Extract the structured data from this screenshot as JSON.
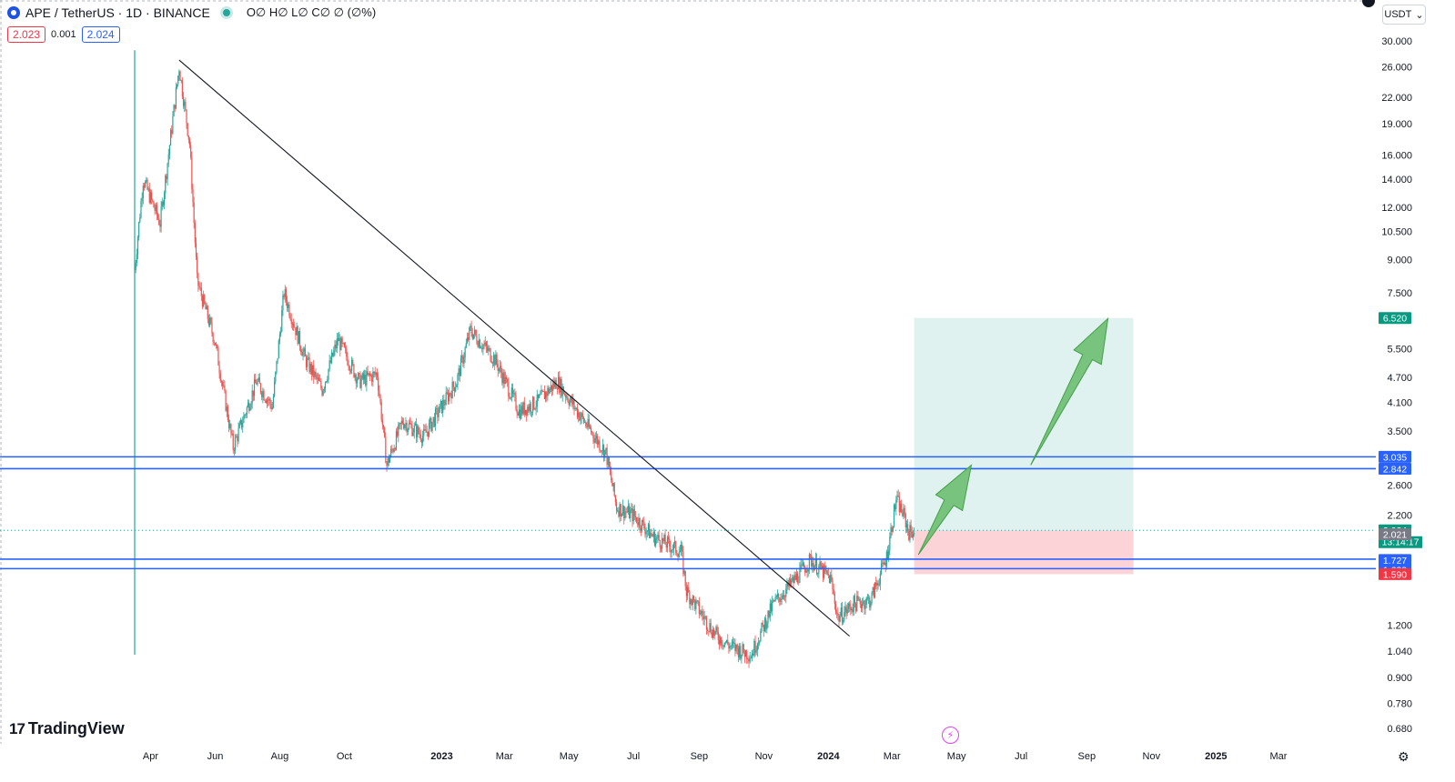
{
  "header": {
    "symbol_title": "APE / TetherUS · 1D · BINANCE",
    "ohlc": "O∅ H∅ L∅ C∅ ∅ (∅%)",
    "sell_price": "2.023",
    "spread": "0.001",
    "buy_price": "2.024",
    "currency": "USDT",
    "currency_caret": "⌄",
    "logo_mark": "17",
    "logo_text": "TradingView",
    "settings_icon": "gear-icon",
    "bolt_glyph": "⚡"
  },
  "colors": {
    "up": "#26a69a",
    "down": "#ef5350",
    "blue_line": "#2962ff",
    "target_zone": "#26a69a",
    "stop_zone": "#f23645",
    "arrow": "#66bb6a"
  },
  "chart_data": {
    "type": "candlestick",
    "scale": "log",
    "ylim": [
      0.62,
      32.0
    ],
    "y_ticks": [
      "30.000",
      "26.000",
      "22.000",
      "19.000",
      "16.000",
      "14.000",
      "12.000",
      "10.500",
      "9.000",
      "7.500",
      "5.500",
      "4.700",
      "4.100",
      "3.500",
      "2.600",
      "2.200",
      "1.200",
      "1.040",
      "0.900",
      "0.780",
      "0.680"
    ],
    "x_ticks": [
      "Apr",
      "Jun",
      "Aug",
      "Oct",
      "2023",
      "Mar",
      "May",
      "Jul",
      "Sep",
      "Nov",
      "2024",
      "Mar",
      "May",
      "Jul",
      "Sep",
      "Nov",
      "2025",
      "Mar"
    ],
    "x_tick_dates": [
      "2022-04-01",
      "2022-06-01",
      "2022-08-01",
      "2022-10-01",
      "2023-01-01",
      "2023-03-01",
      "2023-05-01",
      "2023-07-01",
      "2023-09-01",
      "2023-11-01",
      "2024-01-01",
      "2024-03-01",
      "2024-05-01",
      "2024-07-01",
      "2024-09-01",
      "2024-11-01",
      "2025-01-01",
      "2025-03-01"
    ],
    "date_range": [
      "2022-03-17",
      "2025-05-01"
    ],
    "key_points": [
      {
        "date": "2022-03-17",
        "price": 8.5
      },
      {
        "date": "2022-03-25",
        "price": 14.0
      },
      {
        "date": "2022-04-10",
        "price": 11.0
      },
      {
        "date": "2022-04-28",
        "price": 26.0
      },
      {
        "date": "2022-05-08",
        "price": 17.0
      },
      {
        "date": "2022-05-15",
        "price": 8.0
      },
      {
        "date": "2022-06-01",
        "price": 5.7
      },
      {
        "date": "2022-06-18",
        "price": 3.2
      },
      {
        "date": "2022-07-10",
        "price": 4.6
      },
      {
        "date": "2022-07-25",
        "price": 4.0
      },
      {
        "date": "2022-08-05",
        "price": 7.5
      },
      {
        "date": "2022-08-25",
        "price": 5.2
      },
      {
        "date": "2022-09-10",
        "price": 4.4
      },
      {
        "date": "2022-09-25",
        "price": 5.8
      },
      {
        "date": "2022-10-15",
        "price": 4.6
      },
      {
        "date": "2022-11-01",
        "price": 4.8
      },
      {
        "date": "2022-11-10",
        "price": 2.9
      },
      {
        "date": "2022-11-25",
        "price": 3.7
      },
      {
        "date": "2022-12-15",
        "price": 3.4
      },
      {
        "date": "2023-01-15",
        "price": 4.6
      },
      {
        "date": "2023-01-28",
        "price": 6.1
      },
      {
        "date": "2023-02-20",
        "price": 5.2
      },
      {
        "date": "2023-03-15",
        "price": 3.9
      },
      {
        "date": "2023-04-01",
        "price": 4.1
      },
      {
        "date": "2023-04-20",
        "price": 4.6
      },
      {
        "date": "2023-05-15",
        "price": 3.7
      },
      {
        "date": "2023-06-05",
        "price": 3.1
      },
      {
        "date": "2023-06-15",
        "price": 2.3
      },
      {
        "date": "2023-07-01",
        "price": 2.2
      },
      {
        "date": "2023-07-20",
        "price": 1.95
      },
      {
        "date": "2023-08-15",
        "price": 1.8
      },
      {
        "date": "2023-08-20",
        "price": 1.45
      },
      {
        "date": "2023-09-15",
        "price": 1.15
      },
      {
        "date": "2023-09-30",
        "price": 1.07
      },
      {
        "date": "2023-10-20",
        "price": 1.02
      },
      {
        "date": "2023-11-10",
        "price": 1.35
      },
      {
        "date": "2023-12-01",
        "price": 1.55
      },
      {
        "date": "2023-12-15",
        "price": 1.72
      },
      {
        "date": "2024-01-03",
        "price": 1.55
      },
      {
        "date": "2024-01-10",
        "price": 1.25
      },
      {
        "date": "2024-01-25",
        "price": 1.35
      },
      {
        "date": "2024-02-10",
        "price": 1.38
      },
      {
        "date": "2024-02-25",
        "price": 1.75
      },
      {
        "date": "2024-03-05",
        "price": 2.4
      },
      {
        "date": "2024-03-12",
        "price": 2.2
      },
      {
        "date": "2024-03-17",
        "price": 2.0
      },
      {
        "date": "2024-03-22",
        "price": 2.024
      }
    ],
    "trendline": {
      "start": {
        "date": "2022-04-28",
        "price": 27.0
      },
      "end": {
        "date": "2024-01-21",
        "price": 1.13
      }
    },
    "horizontal_levels": [
      3.035,
      2.842,
      1.727,
      1.639
    ],
    "current_price": 2.024,
    "countdown": "13:14:17",
    "price_labels": [
      {
        "value": 6.52,
        "text": "6.520",
        "kind": "target"
      },
      {
        "value": 3.035,
        "text": "3.035",
        "kind": "level"
      },
      {
        "value": 2.842,
        "text": "2.842",
        "kind": "level"
      },
      {
        "value": 2.024,
        "text": "2.024",
        "kind": "current"
      },
      {
        "value": 2.021,
        "text": "2.021",
        "kind": "gray"
      },
      {
        "value": 1.727,
        "text": "1.727",
        "kind": "level"
      },
      {
        "value": 1.639,
        "text": "1.639",
        "kind": "level"
      },
      {
        "value": 1.59,
        "text": "1.590",
        "kind": "stop"
      }
    ],
    "position": {
      "entry": 2.024,
      "target": 6.52,
      "stop": 1.59,
      "start_date": "2024-03-22",
      "end_date": "2024-10-15"
    },
    "arrows": [
      {
        "from": {
          "date": "2024-03-26",
          "price": 1.77
        },
        "to": {
          "date": "2024-05-15",
          "price": 2.9
        }
      },
      {
        "from": {
          "date": "2024-07-10",
          "price": 2.9
        },
        "to": {
          "date": "2024-09-21",
          "price": 6.5
        }
      }
    ]
  }
}
